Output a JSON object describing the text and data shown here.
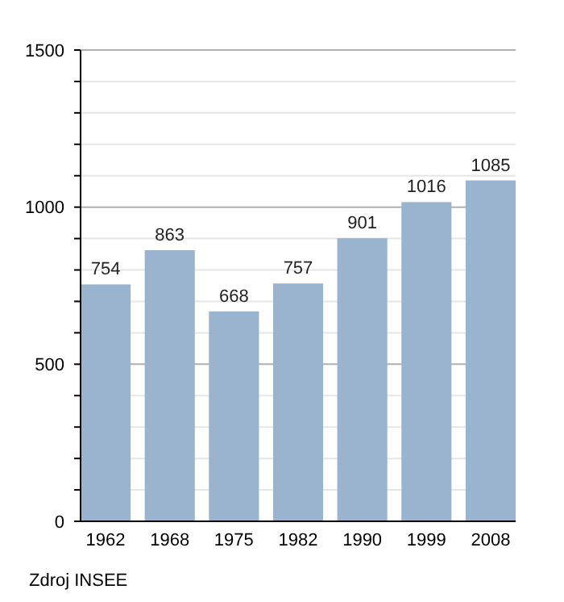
{
  "chart_data": {
    "type": "bar",
    "categories": [
      "1962",
      "1968",
      "1975",
      "1982",
      "1990",
      "1999",
      "2008"
    ],
    "values": [
      754,
      863,
      668,
      757,
      901,
      1016,
      1085
    ],
    "color": "#9ab3cf",
    "data_labels": true,
    "ylim": [
      0,
      1500
    ],
    "yticks": [
      0,
      {
        "value": 100,
        "label": null
      },
      {
        "value": 200,
        "label": null
      },
      {
        "value": 300,
        "label": null
      },
      {
        "value": 400,
        "label": null
      },
      500,
      {
        "value": 600,
        "label": null
      },
      {
        "value": 700,
        "label": null
      },
      {
        "value": 800,
        "label": null
      },
      {
        "value": 900,
        "label": null
      },
      1000,
      {
        "value": 1100,
        "label": null
      },
      {
        "value": 1200,
        "label": null
      },
      {
        "value": 1300,
        "label": null
      },
      {
        "value": 1400,
        "label": null
      },
      1500
    ],
    "grid": true,
    "annotations": [
      "Zdroj INSEE"
    ]
  }
}
